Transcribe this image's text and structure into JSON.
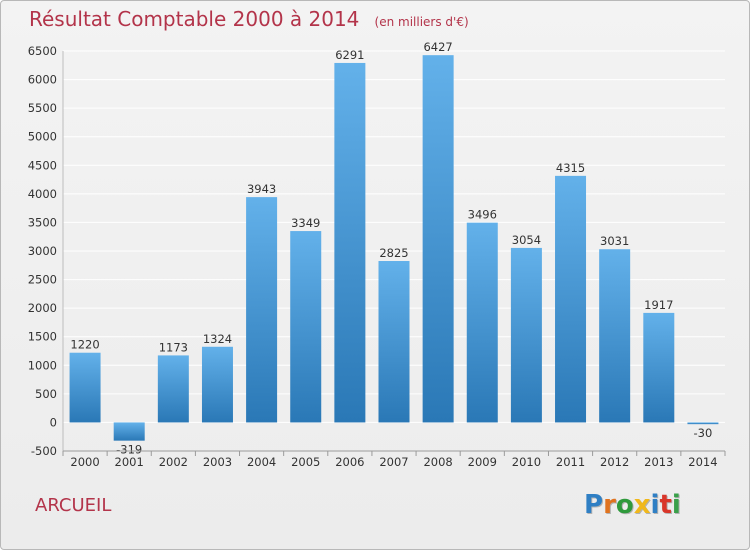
{
  "header": {
    "title": "Résultat Comptable 2000 à 2014",
    "subtitle": "(en milliers d'€)"
  },
  "footer": {
    "town": "ARCUEIL",
    "logo": [
      "P",
      "r",
      "o",
      "x",
      "i",
      "t",
      "i"
    ]
  },
  "colors": {
    "title": "#b3344a",
    "bar_top": "#63b1ea",
    "bar_bottom": "#2a78b6",
    "grid": "#ffffff",
    "background": "#ececec"
  },
  "chart_data": {
    "type": "bar",
    "title": "Résultat Comptable 2000 à 2014",
    "subtitle": "(en milliers d'€)",
    "categories": [
      "2000",
      "2001",
      "2002",
      "2003",
      "2004",
      "2005",
      "2006",
      "2007",
      "2008",
      "2009",
      "2010",
      "2011",
      "2012",
      "2013",
      "2014"
    ],
    "values": [
      1220,
      -319,
      1173,
      1324,
      3943,
      3349,
      6291,
      2825,
      6427,
      3496,
      3054,
      4315,
      3031,
      1917,
      -30
    ],
    "value_labels": [
      "1220",
      "-319",
      "1173",
      "1324",
      "3943",
      "3349",
      "6291",
      "2825",
      "6427",
      "3496",
      "3054",
      "4315",
      "3031",
      "1917",
      "-30"
    ],
    "ylim": [
      -500,
      6500
    ],
    "yticks": [
      -500,
      0,
      500,
      1000,
      1500,
      2000,
      2500,
      3000,
      3500,
      4000,
      4500,
      5000,
      5500,
      6000,
      6500
    ],
    "grid": true,
    "legend": "none"
  }
}
